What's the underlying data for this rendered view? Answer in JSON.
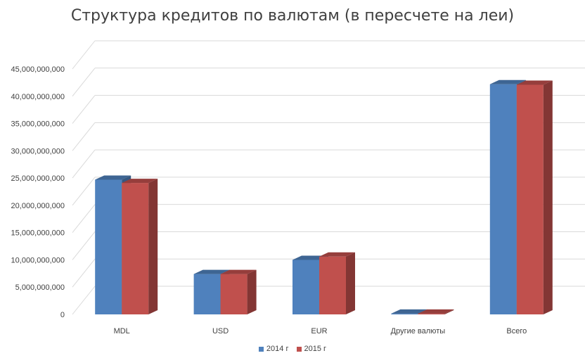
{
  "colors": {
    "series_2014": "#4f81bd",
    "series_2015": "#c0504d",
    "grid": "#d9d9d9",
    "axis_text": "#404040"
  },
  "chart_data": {
    "type": "bar",
    "title": "Структура кредитов по валютам (в пересчете на леи)",
    "xlabel": "",
    "ylabel": "",
    "categories": [
      "MDL",
      "USD",
      "EUR",
      "Другие валюты",
      "Всего"
    ],
    "series": [
      {
        "name": "2014 г",
        "values": [
          24700000000,
          7400000000,
          10000000000,
          150000000,
          42200000000
        ]
      },
      {
        "name": "2015 г",
        "values": [
          24100000000,
          7400000000,
          10600000000,
          150000000,
          42100000000
        ]
      }
    ],
    "ylim": [
      0,
      45000000000
    ],
    "yticks": [
      0,
      5000000000,
      10000000000,
      15000000000,
      20000000000,
      25000000000,
      30000000000,
      35000000000,
      40000000000,
      45000000000
    ],
    "ytick_labels": [
      "0",
      "5,000,000,000",
      "10,000,000,000",
      "15,000,000,000",
      "20,000,000,000",
      "25,000,000,000",
      "30,000,000,000",
      "35,000,000,000",
      "40,000,000,000",
      "45,000,000,000"
    ],
    "grid": true,
    "three_d": true,
    "legend_position": "bottom"
  }
}
